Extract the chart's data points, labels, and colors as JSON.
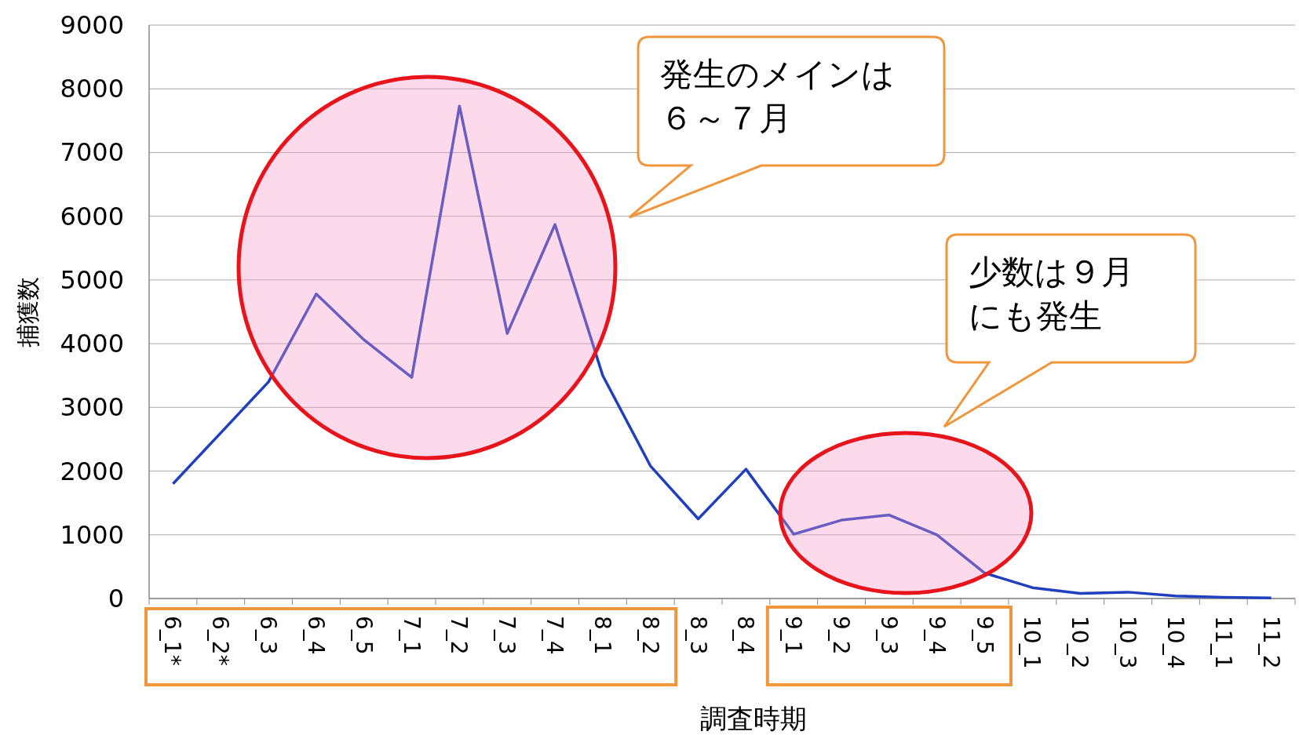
{
  "chart_data": {
    "type": "line",
    "xlabel": "調査時期",
    "ylabel": "捕獲数",
    "categories": [
      "6_1*",
      "6_2*",
      "6_3",
      "6_4",
      "6_5",
      "7_1",
      "7_2",
      "7_3",
      "7_4",
      "8_1",
      "8_2",
      "8_3",
      "8_4",
      "9_1",
      "9_2",
      "9_3",
      "9_4",
      "9_5",
      "10_1",
      "10_2",
      "10_3",
      "10_4",
      "11_1",
      "11_2"
    ],
    "series": [
      {
        "color": "#1f3fbf",
        "values": [
          1800,
          2600,
          3400,
          4780,
          4060,
          3470,
          7730,
          4160,
          5870,
          3500,
          2080,
          1250,
          2030,
          1010,
          1230,
          1310,
          1000,
          400,
          170,
          80,
          100,
          40,
          20,
          10
        ]
      }
    ],
    "ylim": [
      0,
      9000
    ],
    "yticks": [
      0,
      1000,
      2000,
      3000,
      4000,
      5000,
      6000,
      7000,
      8000,
      9000
    ],
    "grid": "y",
    "annotations": [
      "発生のメインは",
      "６～７月",
      "少数は９月",
      "にも発生"
    ]
  }
}
